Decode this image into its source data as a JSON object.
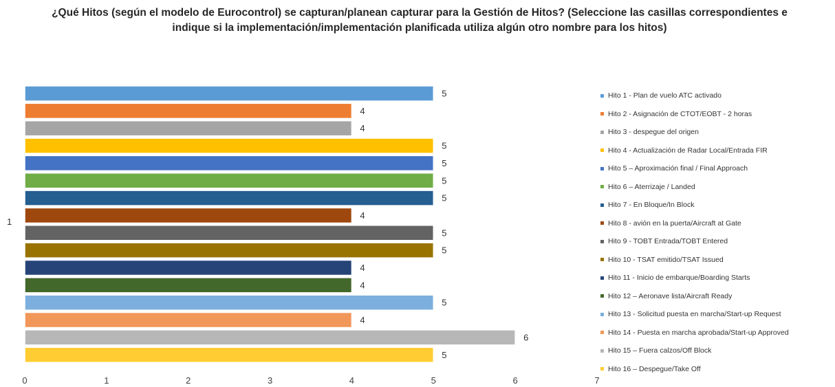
{
  "chart_data": {
    "type": "bar",
    "orientation": "horizontal",
    "title": "¿Qué Hitos (según el modelo de Eurocontrol) se capturan/planean capturar para la Gestión de Hitos? (Seleccione las casillas correspondientes e indique si la implementación/implementación planificada utiliza algún otro nombre para los hitos)",
    "categories": [
      "1"
    ],
    "xlim": [
      0,
      7
    ],
    "xticks": [
      "0",
      "1",
      "2",
      "3",
      "4",
      "5",
      "6",
      "7"
    ],
    "grid": false,
    "legend_position": "right",
    "series": [
      {
        "name": "Hito 1 - Plan de vuelo ATC activado",
        "values": [
          5
        ],
        "color": "#5B9BD5"
      },
      {
        "name": "Hito 2 - Asignación de CTOT/EOBT - 2 horas",
        "values": [
          4
        ],
        "color": "#ED7D31"
      },
      {
        "name": "Hito 3 - despegue del origen",
        "values": [
          4
        ],
        "color": "#A5A5A5"
      },
      {
        "name": "Hito 4 - Actualización de Radar Local/Entrada FIR",
        "values": [
          5
        ],
        "color": "#FFC000"
      },
      {
        "name": "Hito 5 – Aproximación final / Final Approach",
        "values": [
          5
        ],
        "color": "#4472C4"
      },
      {
        "name": "Hito 6 – Aterrizaje / Landed",
        "values": [
          5
        ],
        "color": "#70AD47"
      },
      {
        "name": "Hito 7 - En Bloque/In Block",
        "values": [
          5
        ],
        "color": "#255E91"
      },
      {
        "name": "Hito 8 - avión en la puerta/Aircraft at Gate",
        "values": [
          4
        ],
        "color": "#9E480E"
      },
      {
        "name": "Hito 9 - TOBT Entrada/TOBT Entered",
        "values": [
          5
        ],
        "color": "#636363"
      },
      {
        "name": "Hito 10 - TSAT emitido/TSAT Issued",
        "values": [
          5
        ],
        "color": "#997300"
      },
      {
        "name": "Hito 11 - Inicio de embarque/Boarding Starts",
        "values": [
          4
        ],
        "color": "#264478"
      },
      {
        "name": "Hito 12 – Aeronave lista/Aircraft Ready",
        "values": [
          4
        ],
        "color": "#43682B"
      },
      {
        "name": "Hito 13 - Solicitud puesta en marcha/Start-up Request",
        "values": [
          5
        ],
        "color": "#7CAFDD"
      },
      {
        "name": "Hito 14 - Puesta en marcha aprobada/Start-up Approved",
        "values": [
          4
        ],
        "color": "#F1975A"
      },
      {
        "name": "Hito 15 – Fuera calzos/Off Block",
        "values": [
          6
        ],
        "color": "#B7B7B7"
      },
      {
        "name": "Hito 16 – Despegue/Take Off",
        "values": [
          5
        ],
        "color": "#FFCD33"
      }
    ]
  }
}
